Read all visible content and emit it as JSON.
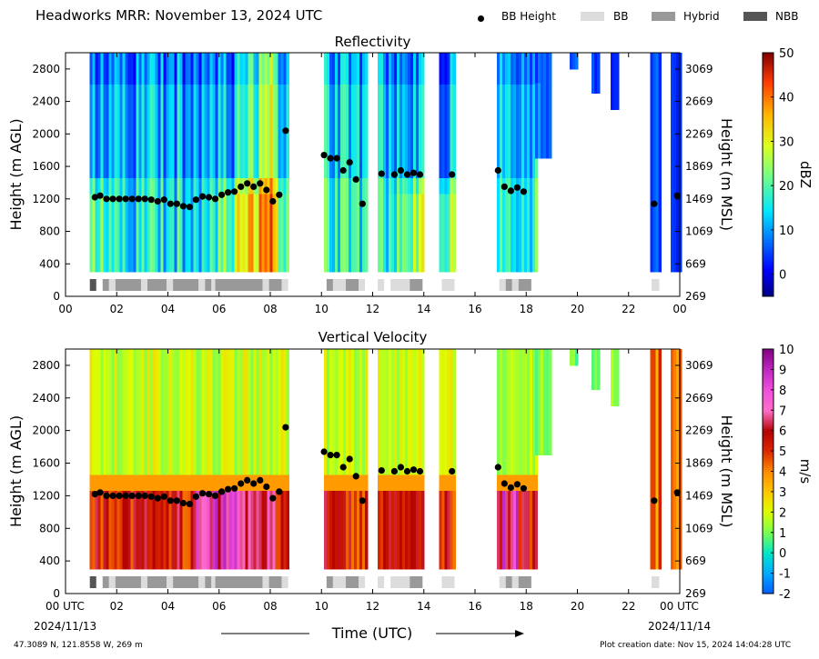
{
  "figure": {
    "title": "Headworks MRR:  November 13, 2024 UTC",
    "footer_left": "47.3089 N, 121.8558 W, 269 m",
    "footer_right": "Plot creation date: Nov 15, 2024 14:04:28 UTC",
    "legend": [
      {
        "label": "BB Height",
        "color": "#000000",
        "marker": "dot"
      },
      {
        "label": "BB",
        "color": "#dcdcdc",
        "marker": "box"
      },
      {
        "label": "Hybrid",
        "color": "#999999",
        "marker": "box"
      },
      {
        "label": "NBB",
        "color": "#555555",
        "marker": "box"
      }
    ]
  },
  "chart_data": [
    {
      "type": "heatmap",
      "title": "Reflectivity",
      "ylabel": "Height (m AGL)",
      "y2label": "Height (m MSL)",
      "colorbar_label": "dBZ",
      "colorbar_range": [
        -5,
        50
      ],
      "colorbar_ticks": [
        "0",
        "10",
        "20",
        "30",
        "40",
        "50"
      ],
      "colorbar_tick_values": [
        0,
        10,
        20,
        30,
        40,
        50
      ],
      "colormap": "jet",
      "xlim": [
        0,
        24
      ],
      "ylim": [
        0,
        3000
      ],
      "y_ticks": [
        "0",
        "400",
        "800",
        "1200",
        "1600",
        "2000",
        "2400",
        "2800"
      ],
      "y2_ticks": [
        "269",
        "669",
        "1069",
        "1469",
        "1869",
        "2269",
        "2669",
        "3069"
      ],
      "x_ticks": [
        "00",
        "02",
        "04",
        "06",
        "08",
        "10",
        "12",
        "14",
        "16",
        "18",
        "20",
        "22",
        "00"
      ]
    },
    {
      "type": "heatmap",
      "title": "Vertical Velocity",
      "ylabel": "Height (m AGL)",
      "y2label": "Height (m MSL)",
      "xlabel": "Time (UTC)",
      "colorbar_label": "m/s",
      "colorbar_range": [
        -2,
        10
      ],
      "colorbar_ticks": [
        "-2",
        "-1",
        "0",
        "1",
        "2",
        "3",
        "4",
        "5",
        "6",
        "7",
        "8",
        "9",
        "10"
      ],
      "colorbar_tick_values": [
        -2,
        -1,
        0,
        1,
        2,
        3,
        4,
        5,
        6,
        7,
        8,
        9,
        10
      ],
      "colormap": "velocity",
      "xlim": [
        0,
        24
      ],
      "ylim": [
        0,
        3000
      ],
      "y_ticks": [
        "0",
        "400",
        "800",
        "1200",
        "1600",
        "2000",
        "2400",
        "2800"
      ],
      "y2_ticks": [
        "269",
        "669",
        "1069",
        "1469",
        "1869",
        "2269",
        "2669",
        "3069"
      ],
      "x_ticks": [
        "00 UTC",
        "02",
        "04",
        "06",
        "08",
        "10",
        "12",
        "14",
        "16",
        "18",
        "20",
        "22",
        "00 UTC"
      ],
      "x_date_left": "2024/11/13",
      "x_date_right": "2024/11/14"
    }
  ],
  "bb_height": [
    [
      1.15,
      1220
    ],
    [
      1.35,
      1240
    ],
    [
      1.6,
      1200
    ],
    [
      1.85,
      1200
    ],
    [
      2.1,
      1200
    ],
    [
      2.35,
      1200
    ],
    [
      2.6,
      1200
    ],
    [
      2.85,
      1200
    ],
    [
      3.1,
      1200
    ],
    [
      3.35,
      1190
    ],
    [
      3.6,
      1170
    ],
    [
      3.85,
      1190
    ],
    [
      4.1,
      1140
    ],
    [
      4.35,
      1140
    ],
    [
      4.6,
      1110
    ],
    [
      4.85,
      1100
    ],
    [
      5.1,
      1190
    ],
    [
      5.35,
      1230
    ],
    [
      5.6,
      1220
    ],
    [
      5.85,
      1200
    ],
    [
      6.1,
      1250
    ],
    [
      6.35,
      1280
    ],
    [
      6.6,
      1290
    ],
    [
      6.85,
      1350
    ],
    [
      7.1,
      1390
    ],
    [
      7.35,
      1350
    ],
    [
      7.6,
      1390
    ],
    [
      7.85,
      1310
    ],
    [
      8.1,
      1170
    ],
    [
      8.35,
      1250
    ],
    [
      8.6,
      2040
    ],
    [
      10.1,
      1740
    ],
    [
      10.35,
      1700
    ],
    [
      10.6,
      1700
    ],
    [
      10.85,
      1550
    ],
    [
      11.1,
      1650
    ],
    [
      11.35,
      1440
    ],
    [
      11.6,
      1140
    ],
    [
      12.35,
      1510
    ],
    [
      12.85,
      1500
    ],
    [
      13.1,
      1550
    ],
    [
      13.35,
      1500
    ],
    [
      13.6,
      1520
    ],
    [
      13.85,
      1500
    ],
    [
      15.1,
      1500
    ],
    [
      16.9,
      1550
    ],
    [
      17.15,
      1350
    ],
    [
      17.4,
      1300
    ],
    [
      17.65,
      1340
    ],
    [
      17.9,
      1290
    ],
    [
      23.0,
      1140
    ],
    [
      23.9,
      1240
    ]
  ],
  "bb_type_strip": [
    {
      "start": 0.95,
      "end": 1.2,
      "type": "NBB"
    },
    {
      "start": 1.45,
      "end": 1.7,
      "type": "Hybrid"
    },
    {
      "start": 1.7,
      "end": 1.95,
      "type": "BB"
    },
    {
      "start": 1.95,
      "end": 2.95,
      "type": "Hybrid"
    },
    {
      "start": 2.95,
      "end": 3.2,
      "type": "BB"
    },
    {
      "start": 3.2,
      "end": 3.95,
      "type": "Hybrid"
    },
    {
      "start": 3.95,
      "end": 4.2,
      "type": "BB"
    },
    {
      "start": 4.2,
      "end": 5.2,
      "type": "Hybrid"
    },
    {
      "start": 5.2,
      "end": 5.45,
      "type": "BB"
    },
    {
      "start": 5.45,
      "end": 5.7,
      "type": "Hybrid"
    },
    {
      "start": 5.7,
      "end": 5.85,
      "type": "BB"
    },
    {
      "start": 5.85,
      "end": 7.7,
      "type": "Hybrid"
    },
    {
      "start": 7.7,
      "end": 7.95,
      "type": "BB"
    },
    {
      "start": 7.95,
      "end": 8.45,
      "type": "Hybrid"
    },
    {
      "start": 8.45,
      "end": 8.7,
      "type": "BB"
    },
    {
      "start": 10.2,
      "end": 10.45,
      "type": "Hybrid"
    },
    {
      "start": 10.45,
      "end": 10.95,
      "type": "BB"
    },
    {
      "start": 10.95,
      "end": 11.45,
      "type": "Hybrid"
    },
    {
      "start": 11.45,
      "end": 11.7,
      "type": "BB"
    },
    {
      "start": 12.2,
      "end": 12.45,
      "type": "BB"
    },
    {
      "start": 12.7,
      "end": 13.45,
      "type": "BB"
    },
    {
      "start": 13.45,
      "end": 13.95,
      "type": "Hybrid"
    },
    {
      "start": 14.7,
      "end": 15.2,
      "type": "BB"
    },
    {
      "start": 16.95,
      "end": 17.2,
      "type": "BB"
    },
    {
      "start": 17.2,
      "end": 17.45,
      "type": "Hybrid"
    },
    {
      "start": 17.45,
      "end": 17.7,
      "type": "BB"
    },
    {
      "start": 17.7,
      "end": 18.2,
      "type": "Hybrid"
    },
    {
      "start": 22.9,
      "end": 23.2,
      "type": "BB"
    }
  ],
  "data_segments": [
    {
      "start": 0.95,
      "end": 8.7,
      "top": 3000,
      "bottom": 300,
      "refl_base": 12,
      "bb": true
    },
    {
      "start": 10.1,
      "end": 11.75,
      "top": 3000,
      "bottom": 300,
      "refl_base": 14,
      "bb": true
    },
    {
      "start": 12.2,
      "end": 13.95,
      "top": 3000,
      "bottom": 300,
      "refl_base": 13,
      "bb": true
    },
    {
      "start": 14.6,
      "end": 15.2,
      "top": 3000,
      "bottom": 300,
      "refl_base": 12,
      "bb": true
    },
    {
      "start": 16.85,
      "end": 18.35,
      "top": 3000,
      "bottom": 300,
      "refl_base": 14,
      "bb": true
    },
    {
      "start": 18.35,
      "end": 18.9,
      "top": 3000,
      "bottom": 1700,
      "refl_base": 12,
      "bb": false
    },
    {
      "start": 19.7,
      "end": 20.0,
      "top": 3000,
      "bottom": 2800,
      "refl_base": 4,
      "bb": false
    },
    {
      "start": 20.55,
      "end": 20.85,
      "top": 3000,
      "bottom": 2500,
      "refl_base": 3,
      "bb": false
    },
    {
      "start": 21.3,
      "end": 21.55,
      "top": 3000,
      "bottom": 2300,
      "refl_base": 3,
      "bb": false
    },
    {
      "start": 22.85,
      "end": 23.2,
      "top": 3000,
      "bottom": 300,
      "refl_base": 8,
      "bb": true
    },
    {
      "start": 23.65,
      "end": 24.0,
      "top": 3000,
      "bottom": 300,
      "refl_base": 12,
      "bb": true
    }
  ]
}
